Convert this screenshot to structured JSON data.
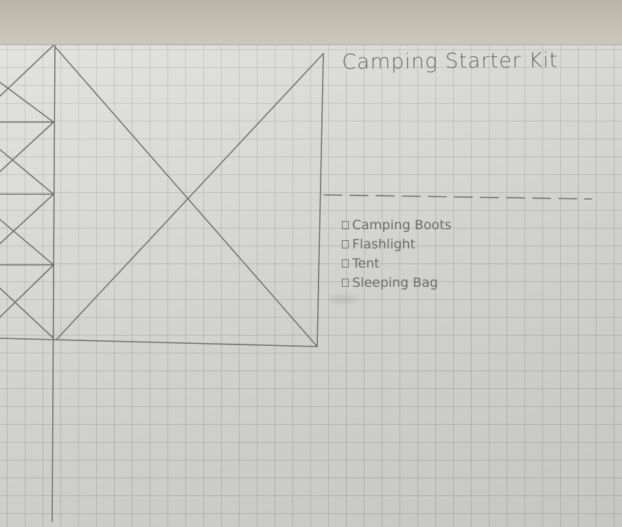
{
  "sketch": {
    "title": "Camping Starter Kit",
    "checklist": [
      {
        "label": "Camping Boots"
      },
      {
        "label": "Flashlight"
      },
      {
        "label": "Tent"
      },
      {
        "label": "Sleeping Bag"
      }
    ],
    "colors": {
      "pencil": "#6e6c68",
      "paper": "#dcdcda",
      "grid": "#8a8a8a",
      "background": "#c9c5b8"
    }
  }
}
